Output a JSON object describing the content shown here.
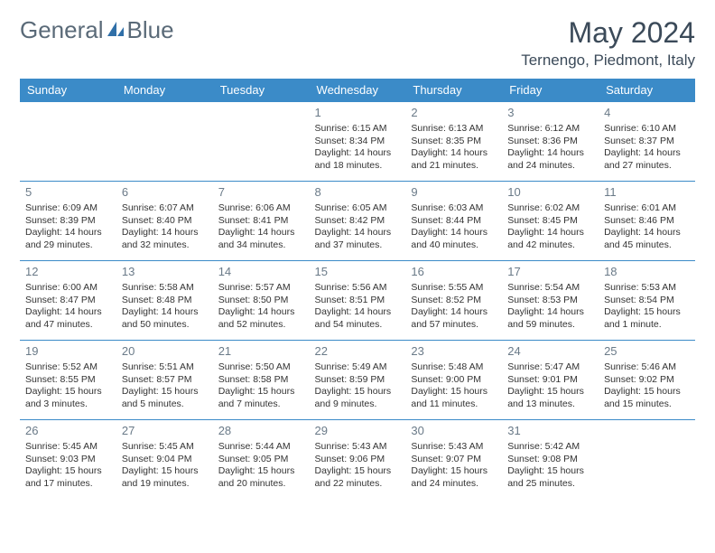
{
  "logo": {
    "text1": "General",
    "text2": "Blue"
  },
  "title": "May 2024",
  "location": "Ternengo, Piedmont, Italy",
  "colors": {
    "header_bg": "#3b8bc8",
    "header_text": "#ffffff",
    "border": "#3b8bc8",
    "daynum": "#6a7a88",
    "body_text": "#333333",
    "title_text": "#3b4a59"
  },
  "weekdays": [
    "Sunday",
    "Monday",
    "Tuesday",
    "Wednesday",
    "Thursday",
    "Friday",
    "Saturday"
  ],
  "weeks": [
    [
      null,
      null,
      null,
      {
        "n": "1",
        "sr": "6:15 AM",
        "ss": "8:34 PM",
        "dl": "14 hours and 18 minutes."
      },
      {
        "n": "2",
        "sr": "6:13 AM",
        "ss": "8:35 PM",
        "dl": "14 hours and 21 minutes."
      },
      {
        "n": "3",
        "sr": "6:12 AM",
        "ss": "8:36 PM",
        "dl": "14 hours and 24 minutes."
      },
      {
        "n": "4",
        "sr": "6:10 AM",
        "ss": "8:37 PM",
        "dl": "14 hours and 27 minutes."
      }
    ],
    [
      {
        "n": "5",
        "sr": "6:09 AM",
        "ss": "8:39 PM",
        "dl": "14 hours and 29 minutes."
      },
      {
        "n": "6",
        "sr": "6:07 AM",
        "ss": "8:40 PM",
        "dl": "14 hours and 32 minutes."
      },
      {
        "n": "7",
        "sr": "6:06 AM",
        "ss": "8:41 PM",
        "dl": "14 hours and 34 minutes."
      },
      {
        "n": "8",
        "sr": "6:05 AM",
        "ss": "8:42 PM",
        "dl": "14 hours and 37 minutes."
      },
      {
        "n": "9",
        "sr": "6:03 AM",
        "ss": "8:44 PM",
        "dl": "14 hours and 40 minutes."
      },
      {
        "n": "10",
        "sr": "6:02 AM",
        "ss": "8:45 PM",
        "dl": "14 hours and 42 minutes."
      },
      {
        "n": "11",
        "sr": "6:01 AM",
        "ss": "8:46 PM",
        "dl": "14 hours and 45 minutes."
      }
    ],
    [
      {
        "n": "12",
        "sr": "6:00 AM",
        "ss": "8:47 PM",
        "dl": "14 hours and 47 minutes."
      },
      {
        "n": "13",
        "sr": "5:58 AM",
        "ss": "8:48 PM",
        "dl": "14 hours and 50 minutes."
      },
      {
        "n": "14",
        "sr": "5:57 AM",
        "ss": "8:50 PM",
        "dl": "14 hours and 52 minutes."
      },
      {
        "n": "15",
        "sr": "5:56 AM",
        "ss": "8:51 PM",
        "dl": "14 hours and 54 minutes."
      },
      {
        "n": "16",
        "sr": "5:55 AM",
        "ss": "8:52 PM",
        "dl": "14 hours and 57 minutes."
      },
      {
        "n": "17",
        "sr": "5:54 AM",
        "ss": "8:53 PM",
        "dl": "14 hours and 59 minutes."
      },
      {
        "n": "18",
        "sr": "5:53 AM",
        "ss": "8:54 PM",
        "dl": "15 hours and 1 minute."
      }
    ],
    [
      {
        "n": "19",
        "sr": "5:52 AM",
        "ss": "8:55 PM",
        "dl": "15 hours and 3 minutes."
      },
      {
        "n": "20",
        "sr": "5:51 AM",
        "ss": "8:57 PM",
        "dl": "15 hours and 5 minutes."
      },
      {
        "n": "21",
        "sr": "5:50 AM",
        "ss": "8:58 PM",
        "dl": "15 hours and 7 minutes."
      },
      {
        "n": "22",
        "sr": "5:49 AM",
        "ss": "8:59 PM",
        "dl": "15 hours and 9 minutes."
      },
      {
        "n": "23",
        "sr": "5:48 AM",
        "ss": "9:00 PM",
        "dl": "15 hours and 11 minutes."
      },
      {
        "n": "24",
        "sr": "5:47 AM",
        "ss": "9:01 PM",
        "dl": "15 hours and 13 minutes."
      },
      {
        "n": "25",
        "sr": "5:46 AM",
        "ss": "9:02 PM",
        "dl": "15 hours and 15 minutes."
      }
    ],
    [
      {
        "n": "26",
        "sr": "5:45 AM",
        "ss": "9:03 PM",
        "dl": "15 hours and 17 minutes."
      },
      {
        "n": "27",
        "sr": "5:45 AM",
        "ss": "9:04 PM",
        "dl": "15 hours and 19 minutes."
      },
      {
        "n": "28",
        "sr": "5:44 AM",
        "ss": "9:05 PM",
        "dl": "15 hours and 20 minutes."
      },
      {
        "n": "29",
        "sr": "5:43 AM",
        "ss": "9:06 PM",
        "dl": "15 hours and 22 minutes."
      },
      {
        "n": "30",
        "sr": "5:43 AM",
        "ss": "9:07 PM",
        "dl": "15 hours and 24 minutes."
      },
      {
        "n": "31",
        "sr": "5:42 AM",
        "ss": "9:08 PM",
        "dl": "15 hours and 25 minutes."
      },
      null
    ]
  ],
  "labels": {
    "sunrise": "Sunrise:",
    "sunset": "Sunset:",
    "daylight": "Daylight:"
  }
}
